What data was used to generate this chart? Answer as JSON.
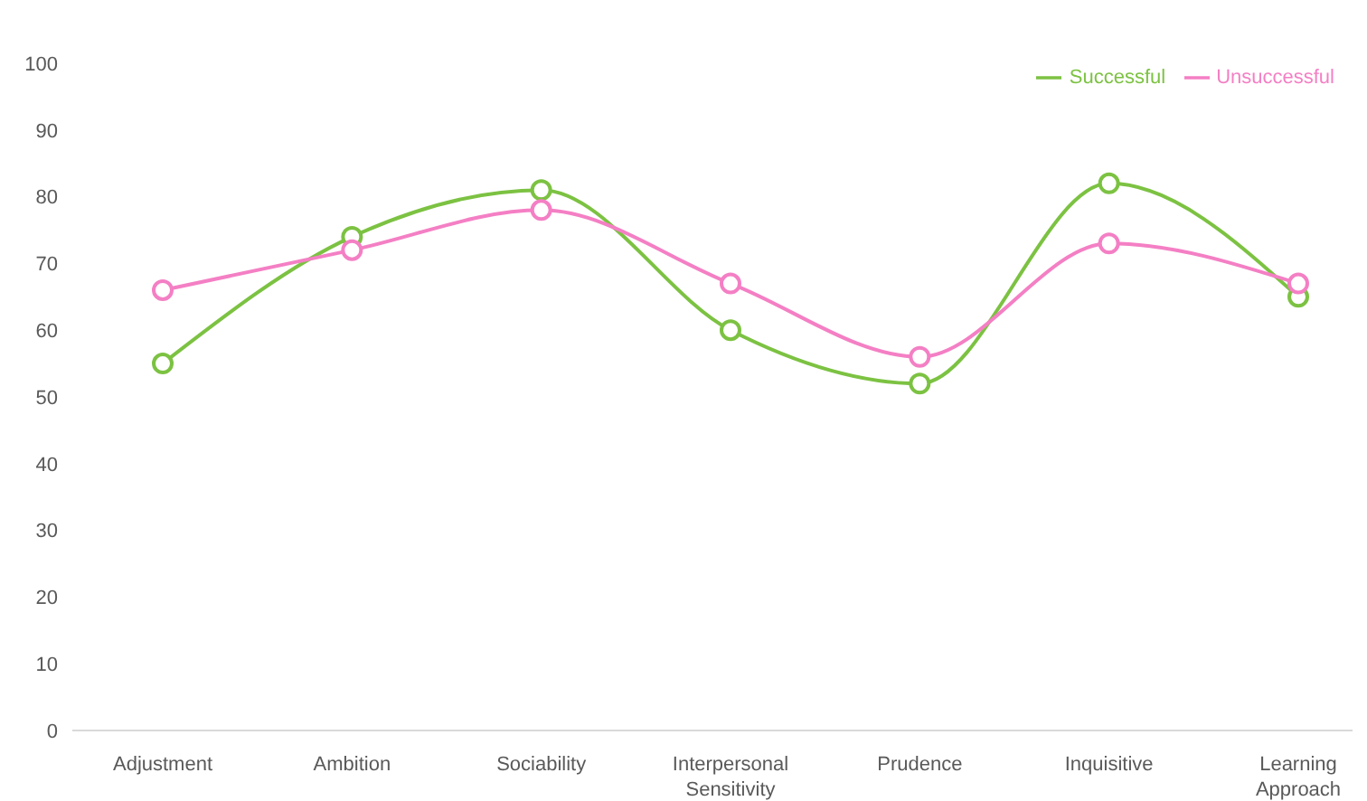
{
  "chart_data": {
    "type": "line",
    "categories": [
      "Adjustment",
      "Ambition",
      "Sociability",
      "Interpersonal Sensitivity",
      "Prudence",
      "Inquisitive",
      "Learning Approach"
    ],
    "series": [
      {
        "name": "Successful",
        "color": "#7cc242",
        "values": [
          55,
          74,
          81,
          60,
          52,
          82,
          65
        ]
      },
      {
        "name": "Unsuccessful",
        "color": "#f47fc4",
        "values": [
          66,
          72,
          78,
          67,
          56,
          73,
          67
        ]
      }
    ],
    "ylim": [
      0,
      100
    ],
    "yticks": [
      0,
      10,
      20,
      30,
      40,
      50,
      60,
      70,
      80,
      90,
      100
    ],
    "grid": false,
    "legend": "top right",
    "marker": "circle",
    "line_style": "solid"
  }
}
